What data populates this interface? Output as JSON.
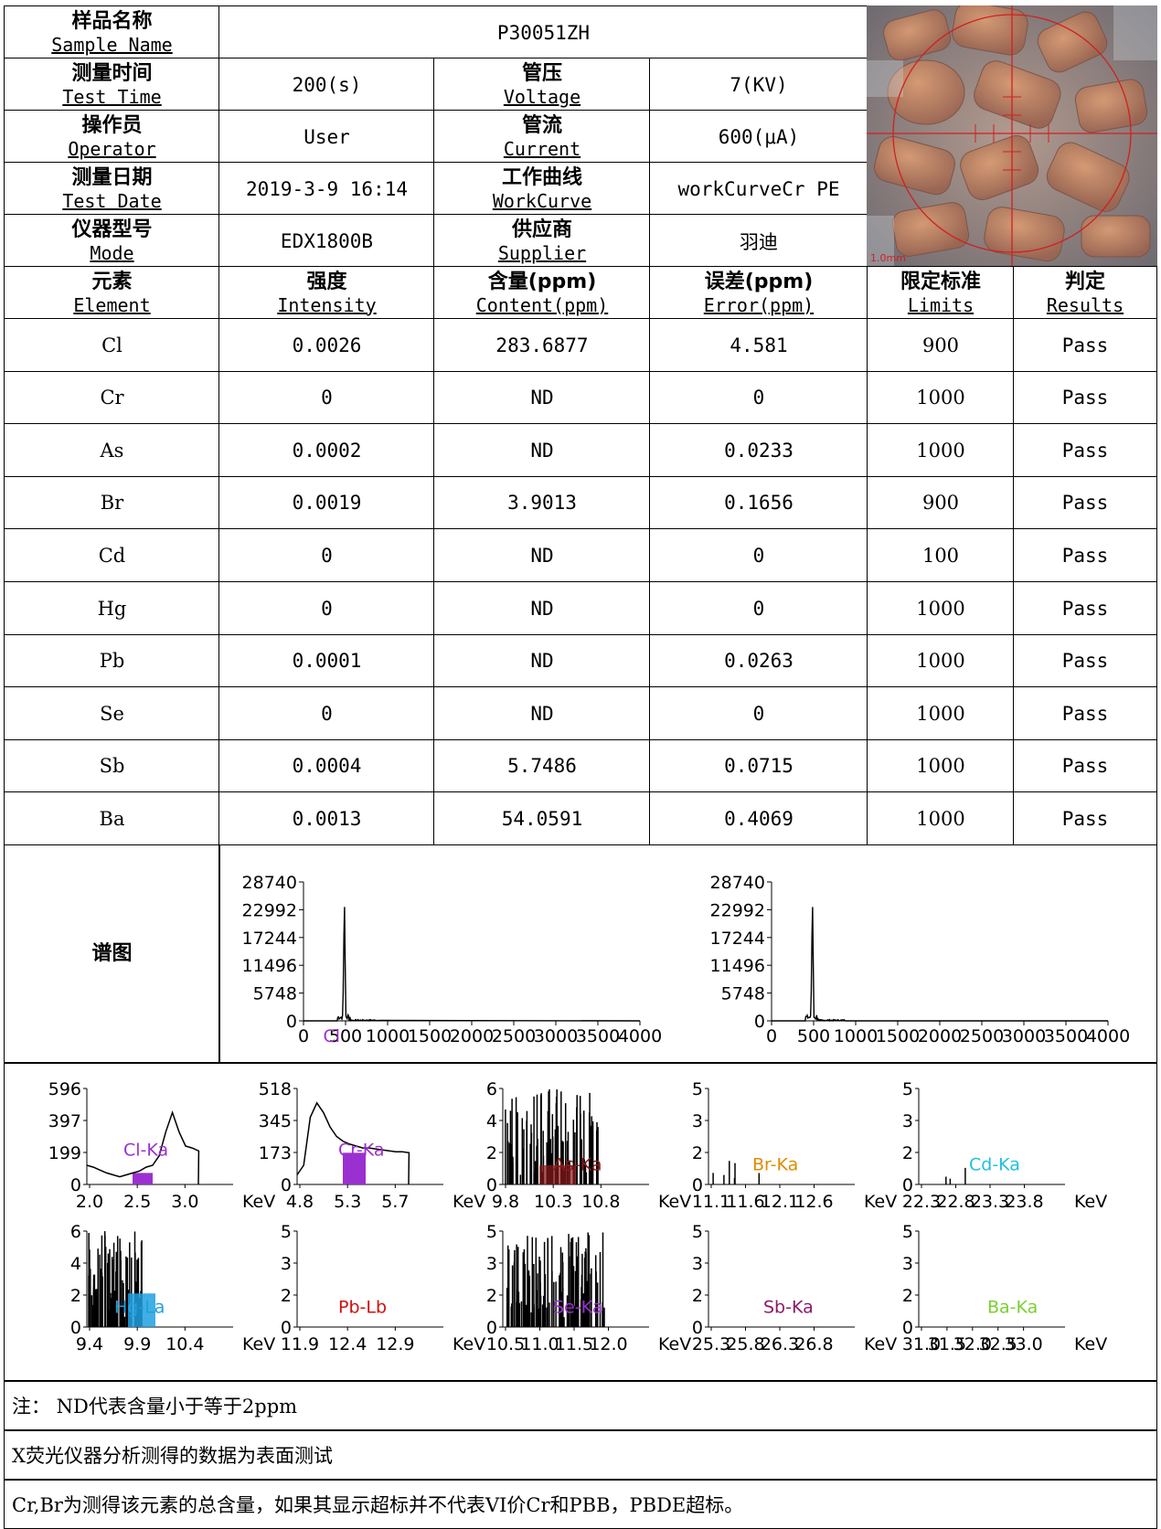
{
  "header": {
    "sample_name": {
      "cn": "样品名称",
      "en": "Sample Name",
      "value": "P30051ZH"
    },
    "test_time": {
      "cn": "测量时间",
      "en": "Test Time",
      "value": "200(s)"
    },
    "voltage": {
      "cn": "管压",
      "en": "Voltage",
      "value": "7(KV)"
    },
    "operator": {
      "cn": "操作员",
      "en": "Operator",
      "value": "User"
    },
    "current": {
      "cn": "管流",
      "en": "Current",
      "value": "600(μA)"
    },
    "test_date": {
      "cn": "测量日期",
      "en": "Test Date",
      "value": "2019-3-9 16:14"
    },
    "workcurve": {
      "cn": "工作曲线",
      "en": "WorkCurve",
      "value": "workCurveCr PE"
    },
    "mode": {
      "cn": "仪器型号",
      "en": "Mode",
      "value": "EDX1800B"
    },
    "supplier": {
      "cn": "供应商",
      "en": "Supplier",
      "value": "羽迪"
    }
  },
  "photo_label": "1.0mm",
  "columns": [
    {
      "cn": "元素",
      "en": "Element"
    },
    {
      "cn": "强度",
      "en": "Intensity"
    },
    {
      "cn": "含量(ppm)",
      "en": "Content(ppm)"
    },
    {
      "cn": "误差(ppm)",
      "en": "Error(ppm)"
    },
    {
      "cn": "限定标准",
      "en": "Limits"
    },
    {
      "cn": "判定",
      "en": "Results"
    }
  ],
  "rows": [
    [
      "Cl",
      "0.0026",
      "283.6877",
      "4.581",
      "900",
      "Pass"
    ],
    [
      "Cr",
      "0",
      "ND",
      "0",
      "1000",
      "Pass"
    ],
    [
      "As",
      "0.0002",
      "ND",
      "0.0233",
      "1000",
      "Pass"
    ],
    [
      "Br",
      "0.0019",
      "3.9013",
      "0.1656",
      "900",
      "Pass"
    ],
    [
      "Cd",
      "0",
      "ND",
      "0",
      "100",
      "Pass"
    ],
    [
      "Hg",
      "0",
      "ND",
      "0",
      "1000",
      "Pass"
    ],
    [
      "Pb",
      "0.0001",
      "ND",
      "0.0263",
      "1000",
      "Pass"
    ],
    [
      "Se",
      "0",
      "ND",
      "0",
      "1000",
      "Pass"
    ],
    [
      "Sb",
      "0.0004",
      "5.7486",
      "0.0715",
      "1000",
      "Pass"
    ],
    [
      "Ba",
      "0.0013",
      "54.0591",
      "0.4069",
      "1000",
      "Pass"
    ]
  ],
  "spectrum_label": "谱图",
  "chart_data": [
    {
      "type": "line",
      "title": "",
      "ylim": [
        0,
        28740
      ],
      "yticks": [
        "28740",
        "22992",
        "17244",
        "11496",
        "5748",
        "0"
      ],
      "xticks": [
        "0",
        "500",
        "1000",
        "1500",
        "2000",
        "2500",
        "3000",
        "3500",
        "4000"
      ],
      "xlim": [
        0,
        4000
      ],
      "peak_x": [
        480,
        500
      ],
      "peak_y": [
        26500
      ],
      "markers": [
        {
          "label": "Cl",
          "color": "#9b30d0"
        }
      ]
    },
    {
      "type": "line",
      "title": "",
      "ylim": [
        0,
        28740
      ],
      "yticks": [
        "28740",
        "22992",
        "17244",
        "11496",
        "5748",
        "0"
      ],
      "xticks": [
        "0",
        "500",
        "1000",
        "1500",
        "2000",
        "2500",
        "3000",
        "3500",
        "4000"
      ],
      "xlim": [
        0,
        4000
      ],
      "peak_y": [
        26500
      ]
    },
    {
      "type": "line",
      "label": "Cl-Ka",
      "label_color": "#9b30d0",
      "yticks": [
        "596",
        "397",
        "199",
        "0"
      ],
      "xticks": [
        "2.0",
        "2.5",
        "3.0"
      ],
      "unit": "KeV"
    },
    {
      "type": "line",
      "label": "Cr-Ka",
      "label_color": "#9b30d0",
      "yticks": [
        "518",
        "345",
        "173",
        "0"
      ],
      "xticks": [
        "4.8",
        "5.3",
        "5.7"
      ],
      "unit": "KeV"
    },
    {
      "type": "line",
      "label": "As-Ka",
      "label_color": "#8b1a1a",
      "yticks": [
        "6",
        "4",
        "2",
        "0"
      ],
      "xticks": [
        "9.8",
        "10.3",
        "10.8"
      ],
      "unit": "KeV"
    },
    {
      "type": "line",
      "label": "Br-Ka",
      "label_color": "#e08a00",
      "yticks": [
        "5",
        "3",
        "2",
        "0"
      ],
      "xticks": [
        "11.1",
        "11.6",
        "12.1",
        "12.6"
      ],
      "unit": "KeV"
    },
    {
      "type": "line",
      "label": "Cd-Ka",
      "label_color": "#20c0e0",
      "yticks": [
        "5",
        "3",
        "2",
        "0"
      ],
      "xticks": [
        "22.3",
        "22.8",
        "23.3",
        "23.8"
      ],
      "unit": "KeV"
    },
    {
      "type": "line",
      "label": "Hg-La",
      "label_color": "#20a0e0",
      "yticks": [
        "6",
        "4",
        "2",
        "0"
      ],
      "xticks": [
        "9.4",
        "9.9",
        "10.4"
      ],
      "unit": "KeV"
    },
    {
      "type": "line",
      "label": "Pb-Lb",
      "label_color": "#d01010",
      "yticks": [
        "5",
        "3",
        "2",
        "0"
      ],
      "xticks": [
        "11.9",
        "12.4",
        "12.9"
      ],
      "unit": "KeV"
    },
    {
      "type": "line",
      "label": "Se-Ka",
      "label_color": "#9b30d0",
      "yticks": [
        "5",
        "3",
        "2",
        "0"
      ],
      "xticks": [
        "10.5",
        "11.0",
        "11.5",
        "12.0"
      ],
      "unit": "KeV"
    },
    {
      "type": "line",
      "label": "Sb-Ka",
      "label_color": "#8b1a6a",
      "yticks": [
        "5",
        "3",
        "2",
        "0"
      ],
      "xticks": [
        "25.3",
        "25.8",
        "26.3",
        "26.8"
      ],
      "unit": "KeV"
    },
    {
      "type": "line",
      "label": "Ba-Ka",
      "label_color": "#7ad030",
      "yticks": [
        "5",
        "3",
        "2",
        "0"
      ],
      "xticks": [
        "31.0",
        "31.5",
        "32.0",
        "32.5",
        "33.0"
      ],
      "unit": "KeV"
    }
  ],
  "notes": [
    "注： ND代表含量小于等于2ppm",
    "X荧光仪器分析测得的数据为表面测试",
    "Cr,Br为测得该元素的总含量，如果其显示超标并不代表VI价Cr和PBB，PBDE超标。"
  ]
}
